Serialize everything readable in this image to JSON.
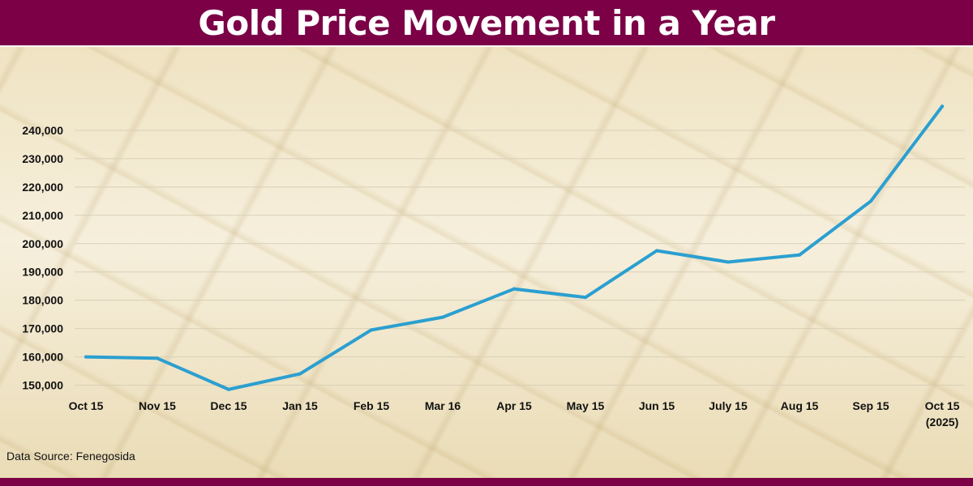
{
  "colors": {
    "header": "#7b0046",
    "line": "#2b9fd0",
    "grid": "#d9cfb6"
  },
  "source_text": "Data Source: Fenegosida",
  "chart_data": {
    "type": "line",
    "title": "Gold Price Movement in a Year",
    "xlabel": "",
    "ylabel": "",
    "categories": [
      "Oct 15",
      "Nov 15",
      "Dec 15",
      "Jan 15",
      "Feb 15",
      "Mar 16",
      "Apr 15",
      "May 15",
      "Jun 15",
      "July 15",
      "Aug 15",
      "Sep 15",
      "Oct 15"
    ],
    "category_sublabels": [
      "",
      "",
      "",
      "",
      "",
      "",
      "",
      "",
      "",
      "",
      "",
      "",
      "(2025)"
    ],
    "series": [
      {
        "values": [
          160000,
          159500,
          148500,
          154000,
          169500,
          174000,
          184000,
          181000,
          197500,
          193500,
          196000,
          215000,
          248500
        ]
      }
    ],
    "y_ticks": [
      150000,
      160000,
      170000,
      180000,
      190000,
      200000,
      210000,
      220000,
      230000,
      240000
    ],
    "y_tick_labels": [
      "150,000",
      "160,000",
      "170,000",
      "180,000",
      "190,000",
      "200,000",
      "210,000",
      "220,000",
      "230,000",
      "240,000"
    ],
    "ylim": [
      147000,
      250000
    ],
    "grid": true
  }
}
